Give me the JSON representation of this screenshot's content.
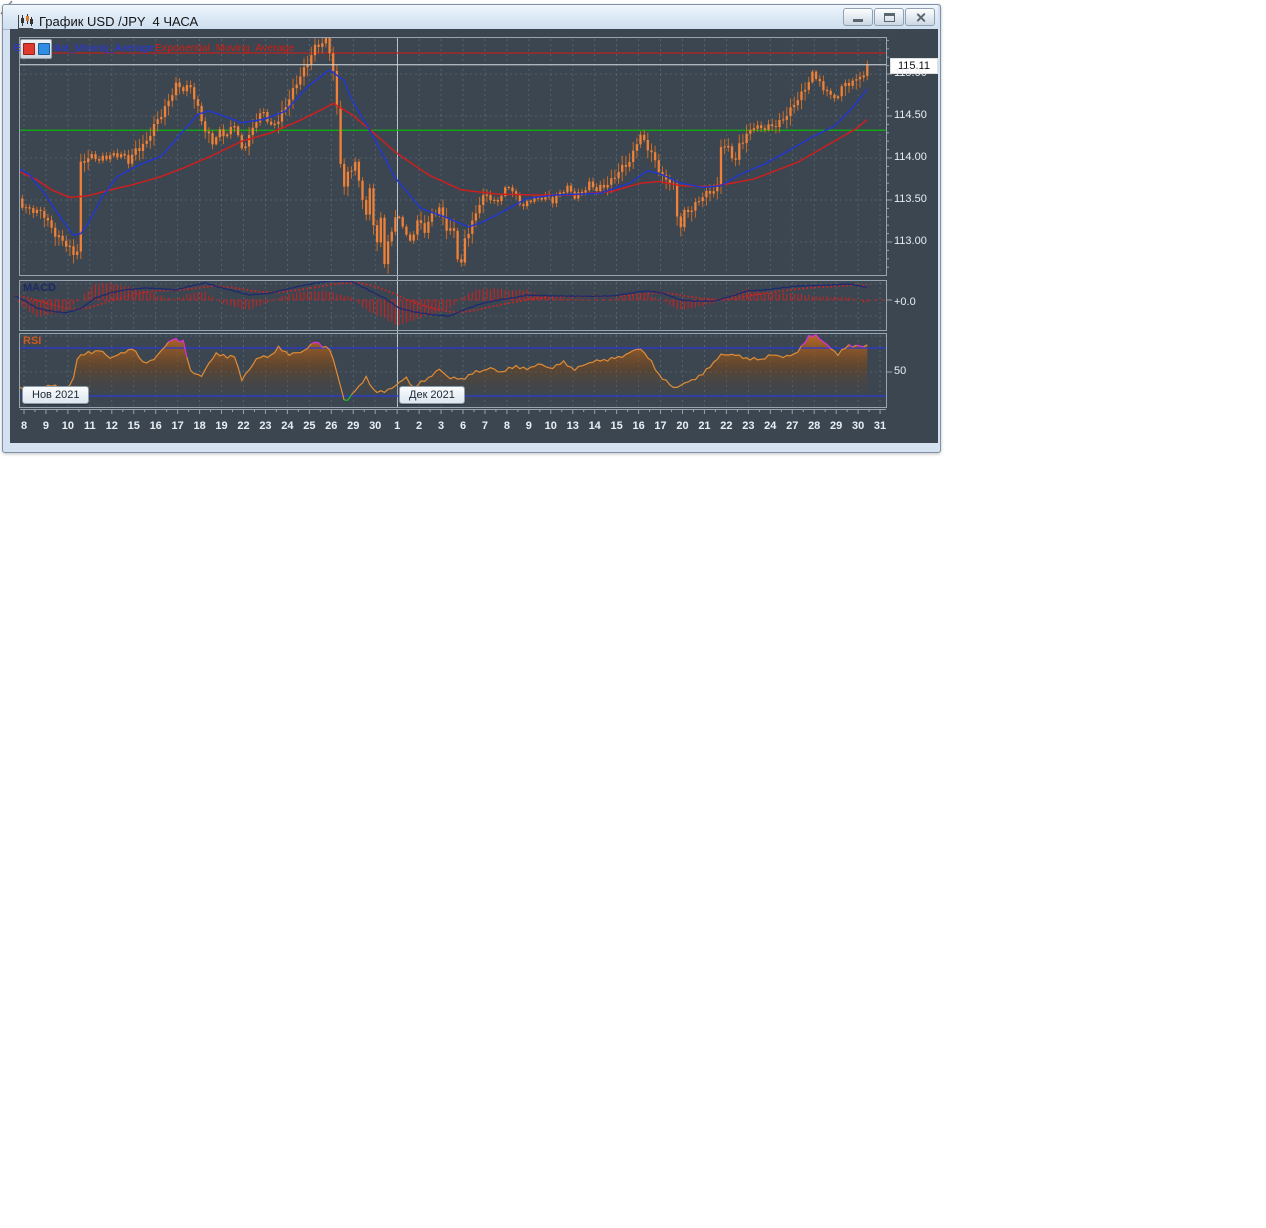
{
  "window": {
    "title": "График USD /JPY  4 ЧАСА",
    "buttons": {
      "minimize": "minimize",
      "maximize": "maximize",
      "close": "close"
    }
  },
  "legend": {
    "fast_label": "Exponential_Moving_Average:",
    "slow_label": "Exponential_Moving_Average",
    "fast_color": "#2a35e0",
    "slow_color": "#d41c10"
  },
  "panels": {
    "macd_label": "MACD",
    "rsi_label": "RSI"
  },
  "axis": {
    "current_price": "115.11",
    "macd_zero_label": "+0.0",
    "rsi_mid_label": "50",
    "month_tooltips": [
      {
        "text": "Нов 2021"
      },
      {
        "text": "Дек 2021"
      }
    ]
  },
  "colors": {
    "background": "#3b4651",
    "panel_border": "#97a4b1",
    "grid": "#78848f",
    "candle_body": "#f08136",
    "candle_wick": "#dd6e1c",
    "ema_fast": "#2238cc",
    "ema_slow": "#cc1f1f",
    "resistance_line": "#b82421",
    "current_line": "#d8dce0",
    "support_line": "#0fb30f",
    "macd_line": "#1c2a70",
    "macd_signal": "#d42222",
    "macd_hist": "#c32424",
    "macd_zero": "#b23232",
    "rsi_line": "#df8c35",
    "rsi_overbought": "#e02ce0",
    "rsi_oversold": "#17c327",
    "rsi_levels": "#2b3bd6",
    "axis_text": "#e9eef3",
    "month_separator": "#c5ced6"
  },
  "chart_data": {
    "type": "candlestick+indicators",
    "symbol": "USD/JPY",
    "timeframe": "4H",
    "title": "График USD /JPY 4 ЧАСА",
    "legend_position": "top-left",
    "grid": true,
    "candles_per_day": 6,
    "num_candles": 234,
    "x_labels": [
      "8",
      "9",
      "10",
      "11",
      "12",
      "15",
      "16",
      "17",
      "18",
      "19",
      "22",
      "23",
      "24",
      "25",
      "26",
      "29",
      "30",
      "1",
      "2",
      "3",
      "6",
      "7",
      "8",
      "9",
      "10",
      "13",
      "14",
      "15",
      "16",
      "17",
      "20",
      "21",
      "22",
      "23",
      "24",
      "27",
      "28",
      "29",
      "30",
      "31"
    ],
    "y_axis": {
      "min": 112.6,
      "max": 115.45,
      "step": 0.5,
      "labels": [
        115.0,
        114.5,
        114.0,
        113.5,
        113.0
      ]
    },
    "levels": {
      "resistance": 115.25,
      "current": 115.11,
      "support_green": 114.33,
      "rsi_upper": 70,
      "rsi_lower": 30,
      "rsi_mid": 50,
      "macd_zero": 0.0
    },
    "price_keyframes": [
      [
        0,
        113.52
      ],
      [
        2,
        113.45
      ],
      [
        5,
        113.38
      ],
      [
        8,
        113.3
      ],
      [
        11,
        113.12
      ],
      [
        14,
        112.95
      ],
      [
        16,
        112.84
      ],
      [
        17,
        112.92
      ],
      [
        18,
        113.95
      ],
      [
        20,
        114.02
      ],
      [
        23,
        113.96
      ],
      [
        26,
        114.06
      ],
      [
        29,
        114.02
      ],
      [
        31,
        113.95
      ],
      [
        33,
        114.12
      ],
      [
        36,
        114.18
      ],
      [
        39,
        114.45
      ],
      [
        42,
        114.7
      ],
      [
        44,
        114.85
      ],
      [
        46,
        114.8
      ],
      [
        48,
        114.88
      ],
      [
        50,
        114.6
      ],
      [
        52,
        114.3
      ],
      [
        54,
        114.18
      ],
      [
        56,
        114.34
      ],
      [
        58,
        114.28
      ],
      [
        60,
        114.38
      ],
      [
        62,
        114.1
      ],
      [
        64,
        114.28
      ],
      [
        66,
        114.45
      ],
      [
        68,
        114.52
      ],
      [
        70,
        114.38
      ],
      [
        72,
        114.48
      ],
      [
        74,
        114.6
      ],
      [
        76,
        114.78
      ],
      [
        78,
        115.0
      ],
      [
        80,
        115.15
      ],
      [
        82,
        115.3
      ],
      [
        84,
        115.35
      ],
      [
        85,
        115.42
      ],
      [
        86,
        115.3
      ],
      [
        87,
        115.05
      ],
      [
        88,
        114.6
      ],
      [
        89,
        113.95
      ],
      [
        90,
        113.62
      ],
      [
        91,
        113.8
      ],
      [
        93,
        113.95
      ],
      [
        95,
        113.55
      ],
      [
        96,
        113.3
      ],
      [
        97,
        113.62
      ],
      [
        98,
        113.2
      ],
      [
        99,
        112.95
      ],
      [
        100,
        113.3
      ],
      [
        101,
        112.78
      ],
      [
        102,
        113.0
      ],
      [
        104,
        113.3
      ],
      [
        106,
        113.18
      ],
      [
        108,
        113.0
      ],
      [
        110,
        113.28
      ],
      [
        112,
        113.12
      ],
      [
        114,
        113.3
      ],
      [
        116,
        113.42
      ],
      [
        118,
        113.18
      ],
      [
        120,
        113.1
      ],
      [
        121,
        112.8
      ],
      [
        122,
        112.72
      ],
      [
        123,
        113.05
      ],
      [
        125,
        113.25
      ],
      [
        127,
        113.45
      ],
      [
        129,
        113.55
      ],
      [
        131,
        113.48
      ],
      [
        133,
        113.58
      ],
      [
        135,
        113.65
      ],
      [
        137,
        113.52
      ],
      [
        139,
        113.45
      ],
      [
        141,
        113.52
      ],
      [
        143,
        113.48
      ],
      [
        145,
        113.55
      ],
      [
        147,
        113.52
      ],
      [
        149,
        113.58
      ],
      [
        151,
        113.62
      ],
      [
        153,
        113.55
      ],
      [
        155,
        113.62
      ],
      [
        157,
        113.68
      ],
      [
        159,
        113.6
      ],
      [
        161,
        113.68
      ],
      [
        163,
        113.75
      ],
      [
        165,
        113.82
      ],
      [
        168,
        113.95
      ],
      [
        170,
        114.22
      ],
      [
        171,
        114.28
      ],
      [
        173,
        114.1
      ],
      [
        175,
        113.95
      ],
      [
        177,
        113.8
      ],
      [
        179,
        113.72
      ],
      [
        180,
        113.65
      ],
      [
        181,
        113.28
      ],
      [
        182,
        113.18
      ],
      [
        183,
        113.35
      ],
      [
        185,
        113.42
      ],
      [
        187,
        113.5
      ],
      [
        189,
        113.55
      ],
      [
        191,
        113.62
      ],
      [
        192,
        113.68
      ],
      [
        193,
        114.18
      ],
      [
        195,
        114.1
      ],
      [
        196,
        114.0
      ],
      [
        197,
        113.95
      ],
      [
        198,
        114.15
      ],
      [
        200,
        114.3
      ],
      [
        202,
        114.38
      ],
      [
        204,
        114.32
      ],
      [
        206,
        114.38
      ],
      [
        208,
        114.42
      ],
      [
        210,
        114.45
      ],
      [
        212,
        114.55
      ],
      [
        214,
        114.72
      ],
      [
        216,
        114.85
      ],
      [
        218,
        114.98
      ],
      [
        220,
        114.9
      ],
      [
        221,
        114.78
      ],
      [
        222,
        114.85
      ],
      [
        224,
        114.7
      ],
      [
        226,
        114.82
      ],
      [
        228,
        114.88
      ],
      [
        230,
        114.95
      ],
      [
        231,
        115.02
      ],
      [
        232,
        114.96
      ],
      [
        233,
        115.11
      ]
    ],
    "ema_fast_keyframes": [
      [
        0,
        113.9
      ],
      [
        4,
        113.8
      ],
      [
        8,
        113.58
      ],
      [
        12,
        113.32
      ],
      [
        16,
        113.08
      ],
      [
        18,
        113.1
      ],
      [
        20,
        113.22
      ],
      [
        24,
        113.55
      ],
      [
        28,
        113.78
      ],
      [
        34,
        113.92
      ],
      [
        40,
        114.02
      ],
      [
        46,
        114.32
      ],
      [
        50,
        114.52
      ],
      [
        53,
        114.56
      ],
      [
        57,
        114.5
      ],
      [
        62,
        114.42
      ],
      [
        68,
        114.46
      ],
      [
        74,
        114.56
      ],
      [
        80,
        114.85
      ],
      [
        86,
        115.05
      ],
      [
        90,
        114.92
      ],
      [
        92,
        114.7
      ],
      [
        98,
        114.25
      ],
      [
        104,
        113.76
      ],
      [
        111,
        113.4
      ],
      [
        118,
        113.29
      ],
      [
        124,
        113.18
      ],
      [
        128,
        113.24
      ],
      [
        132,
        113.33
      ],
      [
        140,
        113.52
      ],
      [
        148,
        113.56
      ],
      [
        160,
        113.58
      ],
      [
        168,
        113.7
      ],
      [
        173,
        113.85
      ],
      [
        177,
        113.8
      ],
      [
        182,
        113.7
      ],
      [
        188,
        113.65
      ],
      [
        193,
        113.67
      ],
      [
        198,
        113.8
      ],
      [
        205,
        113.93
      ],
      [
        212,
        114.1
      ],
      [
        218,
        114.25
      ],
      [
        224,
        114.38
      ],
      [
        229,
        114.6
      ],
      [
        233,
        114.82
      ]
    ],
    "ema_slow_keyframes": [
      [
        0,
        113.86
      ],
      [
        6,
        113.74
      ],
      [
        10,
        113.62
      ],
      [
        15,
        113.53
      ],
      [
        20,
        113.55
      ],
      [
        26,
        113.62
      ],
      [
        32,
        113.68
      ],
      [
        40,
        113.78
      ],
      [
        46,
        113.88
      ],
      [
        54,
        114.03
      ],
      [
        62,
        114.2
      ],
      [
        70,
        114.3
      ],
      [
        78,
        114.45
      ],
      [
        84,
        114.58
      ],
      [
        87,
        114.65
      ],
      [
        92,
        114.52
      ],
      [
        98,
        114.3
      ],
      [
        104,
        114.07
      ],
      [
        113,
        113.8
      ],
      [
        122,
        113.62
      ],
      [
        132,
        113.57
      ],
      [
        142,
        113.56
      ],
      [
        152,
        113.56
      ],
      [
        163,
        113.6
      ],
      [
        171,
        113.7
      ],
      [
        176,
        113.72
      ],
      [
        182,
        113.67
      ],
      [
        190,
        113.66
      ],
      [
        196,
        113.7
      ],
      [
        202,
        113.75
      ],
      [
        208,
        113.85
      ],
      [
        214,
        113.95
      ],
      [
        220,
        114.1
      ],
      [
        226,
        114.25
      ],
      [
        230,
        114.35
      ],
      [
        233,
        114.46
      ]
    ],
    "macd_keyframes": [
      [
        0,
        0.14
      ],
      [
        3,
        -0.05
      ],
      [
        6,
        -0.29
      ],
      [
        10,
        -0.4
      ],
      [
        14,
        -0.46
      ],
      [
        18,
        -0.3
      ],
      [
        22,
        0.07
      ],
      [
        26,
        0.25
      ],
      [
        30,
        0.36
      ],
      [
        36,
        0.43
      ],
      [
        40,
        0.4
      ],
      [
        44,
        0.36
      ],
      [
        48,
        0.5
      ],
      [
        52,
        0.61
      ],
      [
        56,
        0.45
      ],
      [
        60,
        0.32
      ],
      [
        64,
        0.18
      ],
      [
        68,
        0.22
      ],
      [
        70,
        0.25
      ],
      [
        74,
        0.38
      ],
      [
        78,
        0.5
      ],
      [
        82,
        0.6
      ],
      [
        86,
        0.68
      ],
      [
        92,
        0.66
      ],
      [
        96,
        0.4
      ],
      [
        101,
        0.07
      ],
      [
        105,
        -0.29
      ],
      [
        110,
        -0.45
      ],
      [
        115,
        -0.54
      ],
      [
        119,
        -0.57
      ],
      [
        122,
        -0.39
      ],
      [
        127,
        -0.15
      ],
      [
        132,
        0.0
      ],
      [
        136,
        0.07
      ],
      [
        140,
        0.18
      ],
      [
        146,
        0.15
      ],
      [
        152,
        0.14
      ],
      [
        158,
        0.13
      ],
      [
        164,
        0.15
      ],
      [
        170,
        0.28
      ],
      [
        173,
        0.32
      ],
      [
        177,
        0.25
      ],
      [
        182,
        0.0
      ],
      [
        186,
        -0.04
      ],
      [
        191,
        -0.04
      ],
      [
        196,
        0.14
      ],
      [
        200,
        0.32
      ],
      [
        205,
        0.36
      ],
      [
        210,
        0.44
      ],
      [
        214,
        0.5
      ],
      [
        220,
        0.52
      ],
      [
        224,
        0.54
      ],
      [
        228,
        0.57
      ],
      [
        232,
        0.48
      ],
      [
        233,
        0.46
      ]
    ],
    "rsi_keyframes": [
      [
        0,
        39
      ],
      [
        4,
        35
      ],
      [
        8,
        37
      ],
      [
        11,
        39
      ],
      [
        14,
        34
      ],
      [
        16,
        45
      ],
      [
        17,
        62
      ],
      [
        20,
        66
      ],
      [
        23,
        68
      ],
      [
        26,
        62
      ],
      [
        29,
        65
      ],
      [
        32,
        70
      ],
      [
        35,
        58
      ],
      [
        38,
        60
      ],
      [
        41,
        72
      ],
      [
        43,
        77
      ],
      [
        46,
        76
      ],
      [
        48,
        50
      ],
      [
        51,
        47
      ],
      [
        55,
        66
      ],
      [
        58,
        62
      ],
      [
        60,
        64
      ],
      [
        62,
        43
      ],
      [
        66,
        61
      ],
      [
        70,
        64
      ],
      [
        72,
        70
      ],
      [
        75,
        65
      ],
      [
        78,
        66
      ],
      [
        82,
        75
      ],
      [
        84,
        72
      ],
      [
        86,
        69
      ],
      [
        88,
        50
      ],
      [
        89,
        38
      ],
      [
        90,
        27
      ],
      [
        91,
        26
      ],
      [
        93,
        35
      ],
      [
        96,
        45
      ],
      [
        98,
        35
      ],
      [
        101,
        33
      ],
      [
        104,
        39
      ],
      [
        107,
        45
      ],
      [
        109,
        37
      ],
      [
        112,
        43
      ],
      [
        116,
        52
      ],
      [
        119,
        45
      ],
      [
        122,
        44
      ],
      [
        126,
        50
      ],
      [
        130,
        53
      ],
      [
        133,
        50
      ],
      [
        137,
        55
      ],
      [
        140,
        52
      ],
      [
        143,
        57
      ],
      [
        146,
        53
      ],
      [
        150,
        58
      ],
      [
        153,
        52
      ],
      [
        157,
        58
      ],
      [
        161,
        60
      ],
      [
        165,
        62
      ],
      [
        171,
        70
      ],
      [
        174,
        58
      ],
      [
        176,
        48
      ],
      [
        178,
        42
      ],
      [
        180,
        37
      ],
      [
        183,
        40
      ],
      [
        186,
        45
      ],
      [
        188,
        48
      ],
      [
        190,
        55
      ],
      [
        193,
        64
      ],
      [
        196,
        65
      ],
      [
        199,
        62
      ],
      [
        204,
        60
      ],
      [
        206,
        64
      ],
      [
        210,
        63
      ],
      [
        213,
        64
      ],
      [
        217,
        79
      ],
      [
        219,
        81
      ],
      [
        222,
        72
      ],
      [
        225,
        65
      ],
      [
        227,
        70
      ],
      [
        228,
        72
      ],
      [
        231,
        72
      ],
      [
        232,
        70
      ],
      [
        233,
        73
      ]
    ]
  }
}
